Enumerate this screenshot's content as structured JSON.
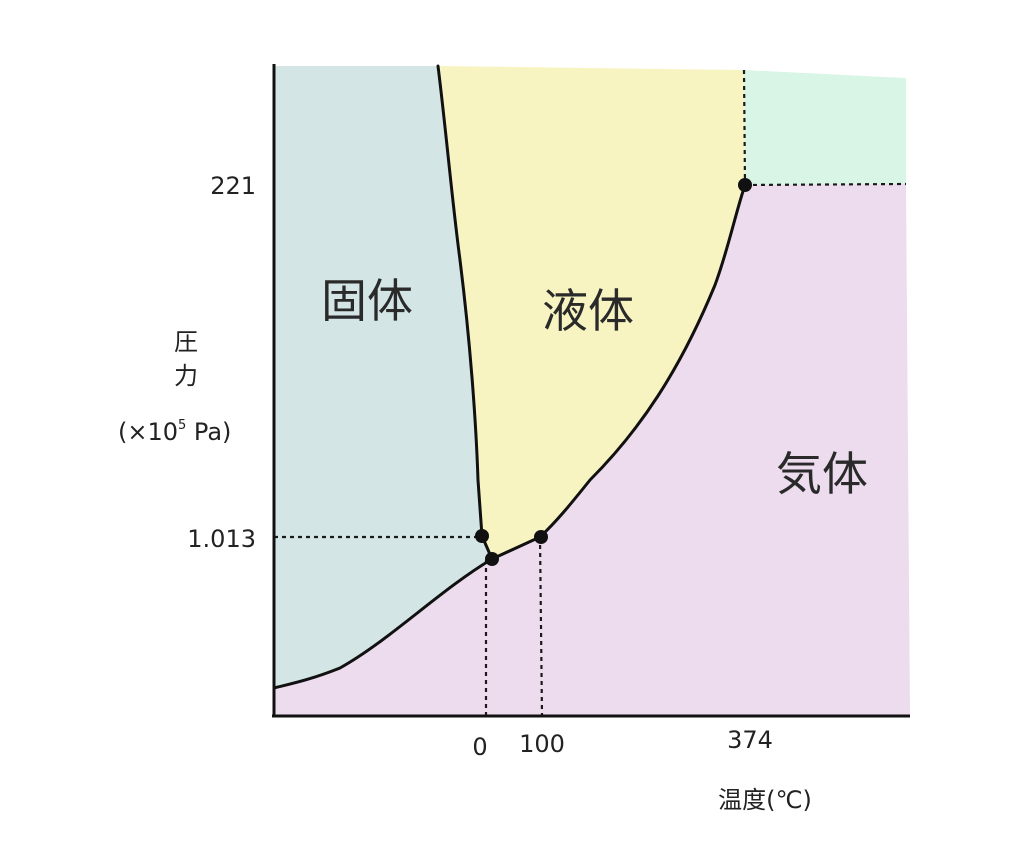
{
  "title": "",
  "colors": {
    "solid": "#d3e6e5",
    "liquid": "#f7f4c2",
    "gas": "#eddcee",
    "supercritical": "#d9f5e6",
    "line": "#111111",
    "text": "#222222"
  },
  "phases": {
    "solid": "固体",
    "liquid": "液体",
    "gas": "気体"
  },
  "y_axis": {
    "label_line1": "圧",
    "label_line2": "力",
    "unit_prefix": "(×10",
    "unit_exp": "5",
    "unit_suffix": " Pa)",
    "ticks": [
      "221",
      "1.013"
    ]
  },
  "x_axis": {
    "label": "温度(℃)",
    "ticks": [
      "0",
      "100",
      "374"
    ]
  },
  "points": [
    {
      "name": "triple-point",
      "temperature": 0.01,
      "pressure": 0.006
    },
    {
      "name": "normal-melting-point",
      "temperature": 0,
      "pressure": 1.013
    },
    {
      "name": "normal-boiling-point",
      "temperature": 100,
      "pressure": 1.013
    },
    {
      "name": "critical-point",
      "temperature": 374,
      "pressure": 221
    }
  ]
}
